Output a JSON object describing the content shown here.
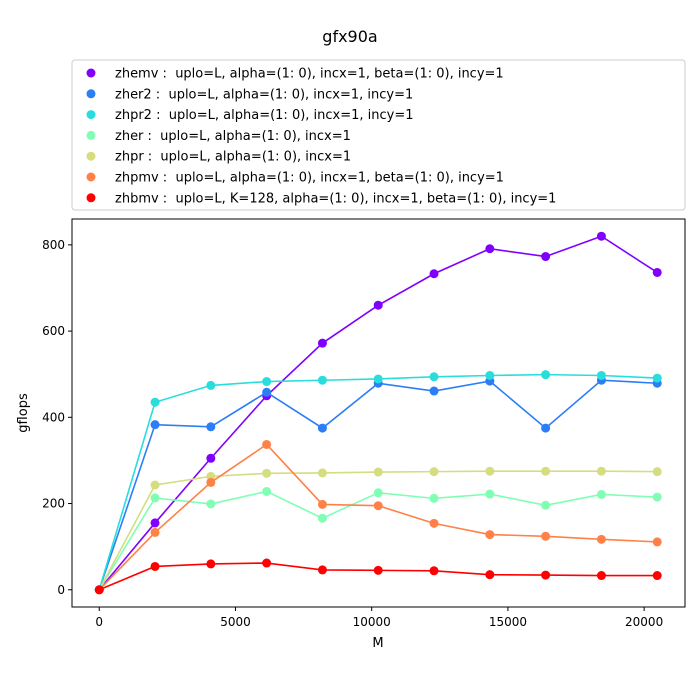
{
  "chart_data": {
    "type": "line",
    "title": "gfx90a",
    "xlabel": "M",
    "ylabel": "gflops",
    "xlim": [
      -1000,
      21500
    ],
    "ylim": [
      -40,
      860
    ],
    "xticks": [
      0,
      5000,
      10000,
      15000,
      20000
    ],
    "yticks": [
      0,
      200,
      400,
      600,
      800
    ],
    "grid": false,
    "legend_position": "top",
    "x": [
      0,
      2048,
      4096,
      6144,
      8192,
      10240,
      12288,
      14336,
      16384,
      18432,
      20480
    ],
    "series": [
      {
        "name": "zhemv :  uplo=L, alpha=(1: 0), incx=1, beta=(1: 0), incy=1",
        "color": "#8000ff",
        "values": [
          0,
          155,
          305,
          450,
          572,
          660,
          733,
          791,
          773,
          820,
          736
        ]
      },
      {
        "name": "zher2 :  uplo=L, alpha=(1: 0), incx=1, incy=1",
        "color": "#2c7ef7",
        "values": [
          0,
          383,
          378,
          458,
          375,
          479,
          461,
          484,
          375,
          486,
          479
        ]
      },
      {
        "name": "zhpr2 :  uplo=L, alpha=(1: 0), incx=1, incy=1",
        "color": "#2adddd",
        "values": [
          0,
          435,
          474,
          483,
          486,
          489,
          494,
          497,
          499,
          497,
          491
        ]
      },
      {
        "name": "zher :  uplo=L, alpha=(1: 0), incx=1",
        "color": "#80ffb4",
        "values": [
          0,
          213,
          199,
          228,
          166,
          225,
          212,
          222,
          196,
          221,
          215
        ]
      },
      {
        "name": "zhpr :  uplo=L, alpha=(1: 0), incx=1",
        "color": "#d4dd80",
        "values": [
          0,
          243,
          263,
          270,
          271,
          273,
          274,
          275,
          275,
          275,
          274
        ]
      },
      {
        "name": "zhpmv :  uplo=L, alpha=(1: 0), incx=1, beta=(1: 0), incy=1",
        "color": "#ff8147",
        "values": [
          0,
          133,
          249,
          337,
          198,
          195,
          154,
          128,
          124,
          117,
          111
        ]
      },
      {
        "name": "zhbmv :  uplo=L, K=128, alpha=(1: 0), incx=1, beta=(1: 0), incy=1",
        "color": "#ff0000",
        "values": [
          0,
          54,
          60,
          62,
          46,
          45,
          44,
          35,
          34,
          33,
          33
        ]
      }
    ]
  }
}
